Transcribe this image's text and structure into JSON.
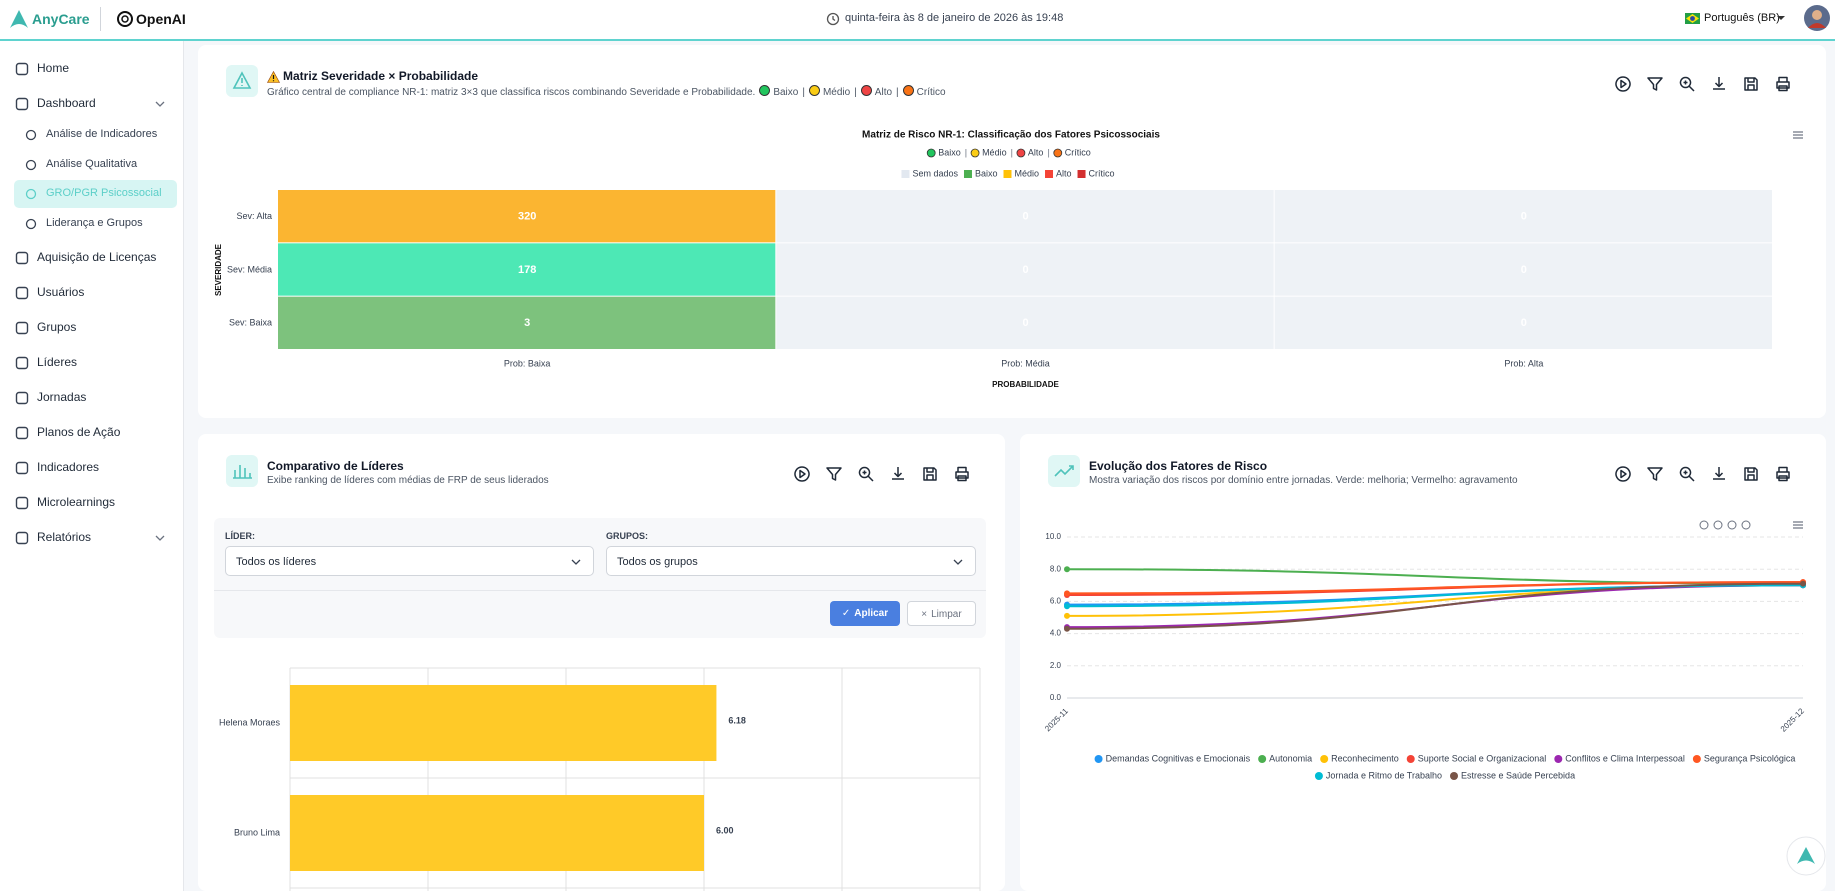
{
  "header": {
    "brand": "AnyCare",
    "partner": "OpenAI",
    "datetime": "quinta-feira às 8 de janeiro de 2026 às 19:48",
    "language": "Português (BR)"
  },
  "nav": {
    "items": [
      {
        "label": "Home"
      },
      {
        "label": "Dashboard",
        "expanded": true,
        "children": [
          {
            "label": "Análise de Indicadores"
          },
          {
            "label": "Análise Qualitativa"
          },
          {
            "label": "GRO/PGR Psicossocial",
            "selected": true
          },
          {
            "label": "Liderança e Grupos"
          }
        ]
      },
      {
        "label": "Aquisição de Licenças"
      },
      {
        "label": "Usuários"
      },
      {
        "label": "Grupos"
      },
      {
        "label": "Líderes"
      },
      {
        "label": "Jornadas"
      },
      {
        "label": "Planos de Ação"
      },
      {
        "label": "Indicadores"
      },
      {
        "label": "Microlearnings"
      },
      {
        "label": "Relatórios",
        "expanded": false
      }
    ]
  },
  "panels": [
    {
      "title": "Matriz Severidade × Probabilidade",
      "subtitle": "Gráfico central de compliance NR-1: matriz 3×3 que classifica riscos combinando Severidade e Probabilidade.",
      "legend": {
        "separator": "|",
        "items": [
          {
            "label": "Baixo",
            "color": "#22c55e"
          },
          {
            "label": "Médio",
            "color": "#facc15"
          },
          {
            "label": "Alto",
            "color": "#ef4444"
          },
          {
            "label": "Crítico",
            "color": "#f97316"
          }
        ]
      },
      "chart": {
        "type": "heatmap",
        "title": "Matriz de Risco NR-1: Classificação dos Fatores Psicossociais",
        "subtitle_legend": {
          "separator": "|",
          "items": [
            {
              "label": "Baixo",
              "color": "#22c55e"
            },
            {
              "label": "Médio",
              "color": "#facc15"
            },
            {
              "label": "Alto",
              "color": "#ef4444"
            },
            {
              "label": "Crítico",
              "color": "#f97316"
            }
          ]
        },
        "legend": [
          {
            "label": "Sem dados",
            "color": "#e2e8f0"
          },
          {
            "label": "Baixo",
            "color": "#4caf50"
          },
          {
            "label": "Médio",
            "color": "#ffc107"
          },
          {
            "label": "Alto",
            "color": "#f44336"
          },
          {
            "label": "Crítico",
            "color": "#d32f2f"
          }
        ],
        "rows": [
          "Sev: Alta",
          "Sev: Média",
          "Sev: Baixa"
        ],
        "columns": [
          "Prob: Baixa",
          "Prob: Média",
          "Prob: Alta"
        ],
        "values": [
          [
            320,
            0,
            0
          ],
          [
            178,
            0,
            0
          ],
          [
            3,
            0,
            0
          ]
        ],
        "colors": [
          [
            "#fbb531",
            "#eef2f6",
            "#eef2f6"
          ],
          [
            "#4de8b5",
            "#eef2f6",
            "#eef2f6"
          ],
          [
            "#7dc27d",
            "#eef2f6",
            "#eef2f6"
          ]
        ],
        "xlabel": "PROBABILIDADE",
        "ylabel": "SEVERIDADE"
      }
    },
    {
      "title": "Comparativo de Líderes",
      "subtitle": "Exibe ranking de líderes com médias de FRP de seus liderados",
      "filters": [
        {
          "label": "LÍDER:",
          "value": "Todos os líderes"
        },
        {
          "label": "GRUPOS:",
          "value": "Todos os grupos"
        }
      ],
      "buttons": [
        "Aplicar",
        "Limpar"
      ],
      "chart": {
        "type": "bar",
        "orientation": "horizontal",
        "categories": [
          "Helena Moraes",
          "Bruno Lima"
        ],
        "values": [
          6.18,
          6.0
        ],
        "value_labels": [
          "6.18",
          "6.00"
        ],
        "color": "#ffca28",
        "xlim": [
          0,
          10
        ],
        "xgrid": [
          0,
          2,
          4,
          6,
          8,
          10
        ]
      }
    },
    {
      "title": "Evolução dos Fatores de Risco",
      "subtitle": "Mostra variação dos riscos por domínio entre jornadas. Verde: melhoria; Vermelho: agravamento",
      "chart": {
        "type": "line",
        "x": [
          "2025-11",
          "2025-12"
        ],
        "ylim": [
          0,
          10
        ],
        "yticks": [
          {
            "value": 0,
            "label": "0.0"
          },
          {
            "value": 2,
            "label": "2.0"
          },
          {
            "value": 4,
            "label": "4.0"
          },
          {
            "value": 6,
            "label": "6.0"
          },
          {
            "value": 8,
            "label": "8.0"
          },
          {
            "value": 10,
            "label": "10.0"
          }
        ],
        "grid": true,
        "series": [
          {
            "name": "Demandas Cognitivas e Emocionais",
            "color": "#2196f3",
            "values": [
              5.8,
              7.0
            ]
          },
          {
            "name": "Autonomia",
            "color": "#4caf50",
            "values": [
              8.0,
              7.1
            ]
          },
          {
            "name": "Reconhecimento",
            "color": "#ffc107",
            "values": [
              5.1,
              7.0
            ]
          },
          {
            "name": "Suporte Social e Organizacional",
            "color": "#f44336",
            "values": [
              6.4,
              7.2
            ]
          },
          {
            "name": "Conflitos e Clima Interpessoal",
            "color": "#9c27b0",
            "values": [
              4.4,
              7.0
            ]
          },
          {
            "name": "Segurança Psicológica",
            "color": "#ff5722",
            "values": [
              6.5,
              7.2
            ]
          },
          {
            "name": "Jornada e Ritmo de Trabalho",
            "color": "#00bcd4",
            "values": [
              5.7,
              7.0
            ]
          },
          {
            "name": "Estresse e Saúde Percebida",
            "color": "#795548",
            "values": [
              4.3,
              7.1
            ]
          }
        ]
      }
    }
  ]
}
